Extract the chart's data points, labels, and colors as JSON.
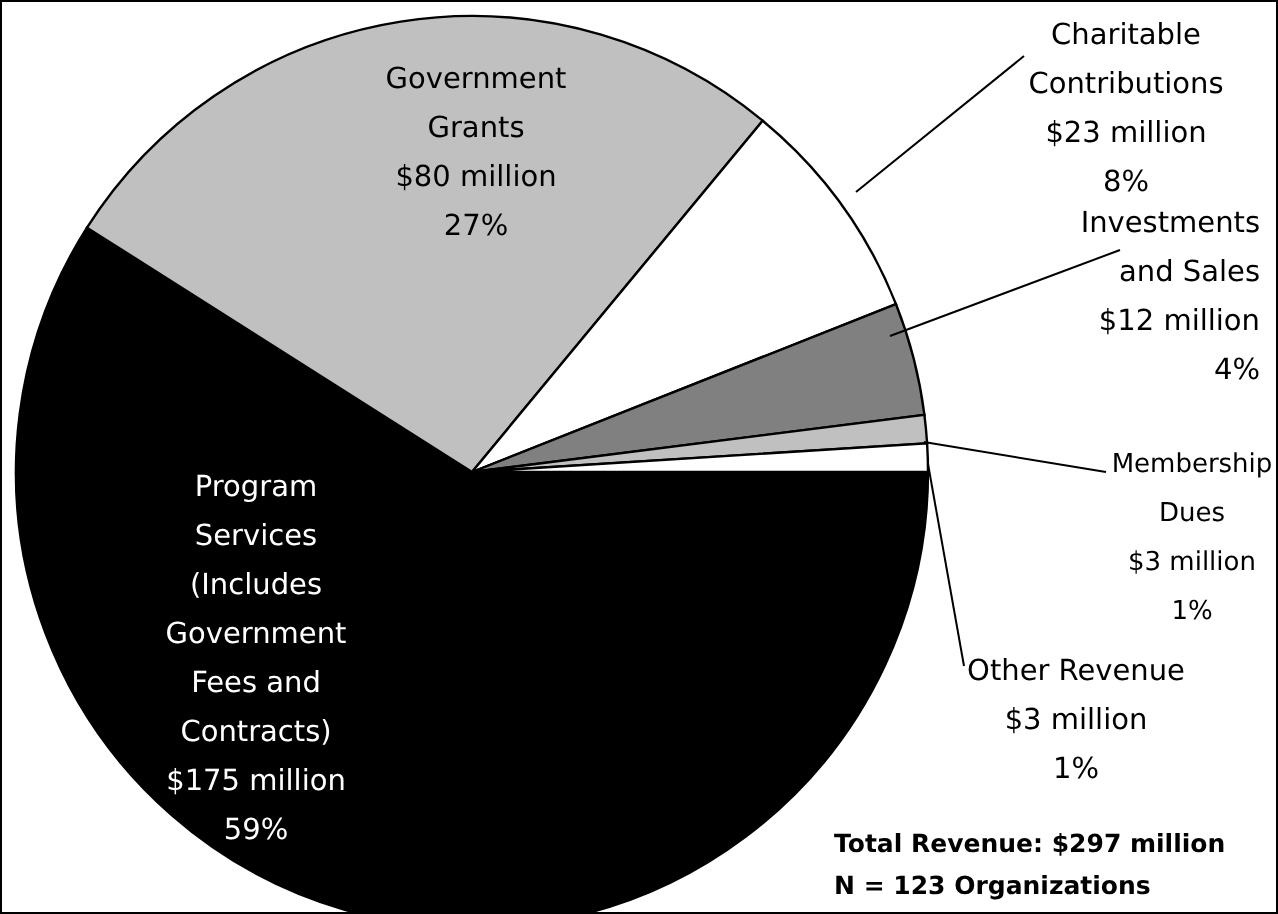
{
  "chart_data": {
    "type": "pie",
    "categories": [
      "Program Services (Includes Government Fees and Contracts)",
      "Government Grants",
      "Charitable Contributions",
      "Investments and Sales",
      "Membership Dues",
      "Other Revenue"
    ],
    "values": [
      59,
      27,
      8,
      4,
      1,
      1
    ],
    "colors": [
      "#000000",
      "#c0c0c0",
      "#ffffff",
      "#808080",
      "#c0c0c0",
      "#ffffff"
    ],
    "value_labels": [
      "$175 million\n59%",
      "$80 million\n27%",
      "$23 million\n8%",
      "$12 million\n4%",
      "$3 million\n1%",
      "$3 million\n1%"
    ],
    "annotations": [
      "Total Revenue: $297 million",
      "N = 123 Organizations"
    ]
  }
}
